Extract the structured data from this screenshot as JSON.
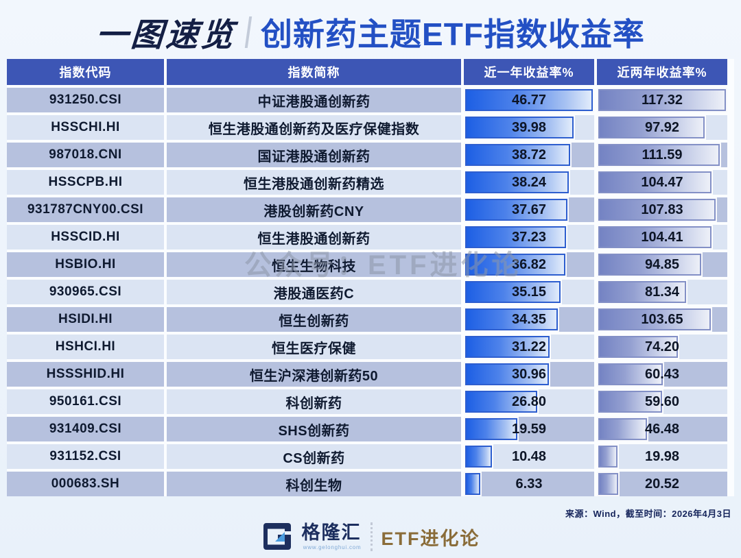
{
  "title": {
    "brand": "一图速览",
    "main": "创新药主题ETF指数收益率"
  },
  "table": {
    "headers": [
      "指数代码",
      "指数简称",
      "近一年收益率%",
      "近两年收益率%"
    ],
    "rows": [
      {
        "code": "931250.CSI",
        "name": "中证港股通创新药",
        "one_year": 46.77,
        "two_year": 117.32
      },
      {
        "code": "HSSCHI.HI",
        "name": "恒生港股通创新药及医疗保健指数",
        "one_year": 39.98,
        "two_year": 97.92
      },
      {
        "code": "987018.CNI",
        "name": "国证港股通创新药",
        "one_year": 38.72,
        "two_year": 111.59
      },
      {
        "code": "HSSCPB.HI",
        "name": "恒生港股通创新药精选",
        "one_year": 38.24,
        "two_year": 104.47
      },
      {
        "code": "931787CNY00.CSI",
        "name": "港股创新药CNY",
        "one_year": 37.67,
        "two_year": 107.83
      },
      {
        "code": "HSSCID.HI",
        "name": "恒生港股通创新药",
        "one_year": 37.23,
        "two_year": 104.41
      },
      {
        "code": "HSBIO.HI",
        "name": "恒生生物科技",
        "one_year": 36.82,
        "two_year": 94.85
      },
      {
        "code": "930965.CSI",
        "name": "港股通医药C",
        "one_year": 35.15,
        "two_year": 81.34
      },
      {
        "code": "HSIDI.HI",
        "name": "恒生创新药",
        "one_year": 34.35,
        "two_year": 103.65
      },
      {
        "code": "HSHCI.HI",
        "name": "恒生医疗保健",
        "one_year": 31.22,
        "two_year": 74.2
      },
      {
        "code": "HSSSHID.HI",
        "name": "恒生沪深港创新药50",
        "one_year": 30.96,
        "two_year": 60.43
      },
      {
        "code": "950161.CSI",
        "name": "科创新药",
        "one_year": 26.8,
        "two_year": 59.6
      },
      {
        "code": "931409.CSI",
        "name": "SHS创新药",
        "one_year": 19.59,
        "two_year": 46.48
      },
      {
        "code": "931152.CSI",
        "name": "CS创新药",
        "one_year": 10.48,
        "two_year": 19.98
      },
      {
        "code": "000683.SH",
        "name": "科创生物",
        "one_year": 6.33,
        "two_year": 20.52
      }
    ]
  },
  "watermark": "公众号：ETF进化论",
  "source_note": "来源：Wind，截至时间：2026年4月3日",
  "footer": {
    "brand": "格隆汇",
    "brand_url": "www.gelonghui.com",
    "partner": "ETF进化论"
  },
  "colors": {
    "header_bg": "#3d56b5",
    "row_odd": "#b6c1de",
    "row_even": "#dbe4f3",
    "one_year_bar": "#2a66e4",
    "two_year_bar": "#7d8ac5",
    "title_brand": "#141f45",
    "title_main": "#2350c4",
    "partner_text": "#8a6c39"
  },
  "chart_data": {
    "type": "table",
    "title": "创新药主题ETF指数收益率",
    "columns": [
      "指数代码",
      "指数简称",
      "近一年收益率%",
      "近两年收益率%"
    ],
    "categories": [
      "中证港股通创新药",
      "恒生港股通创新药及医疗保健指数",
      "国证港股通创新药",
      "恒生港股通创新药精选",
      "港股创新药CNY",
      "恒生港股通创新药",
      "恒生生物科技",
      "港股通医药C",
      "恒生创新药",
      "恒生医疗保健",
      "恒生沪深港创新药50",
      "科创新药",
      "SHS创新药",
      "CS创新药",
      "科创生物"
    ],
    "series": [
      {
        "name": "近一年收益率%",
        "values": [
          46.77,
          39.98,
          38.72,
          38.24,
          37.67,
          37.23,
          36.82,
          35.15,
          34.35,
          31.22,
          30.96,
          26.8,
          19.59,
          10.48,
          6.33
        ]
      },
      {
        "name": "近两年收益率%",
        "values": [
          117.32,
          97.92,
          111.59,
          104.47,
          107.83,
          104.41,
          94.85,
          81.34,
          103.65,
          74.2,
          60.43,
          59.6,
          46.48,
          19.98,
          20.52
        ]
      }
    ],
    "bar_scale": {
      "one_year_max": 46.77,
      "two_year_max": 117.32
    },
    "legend_position": "none",
    "grid": false
  }
}
